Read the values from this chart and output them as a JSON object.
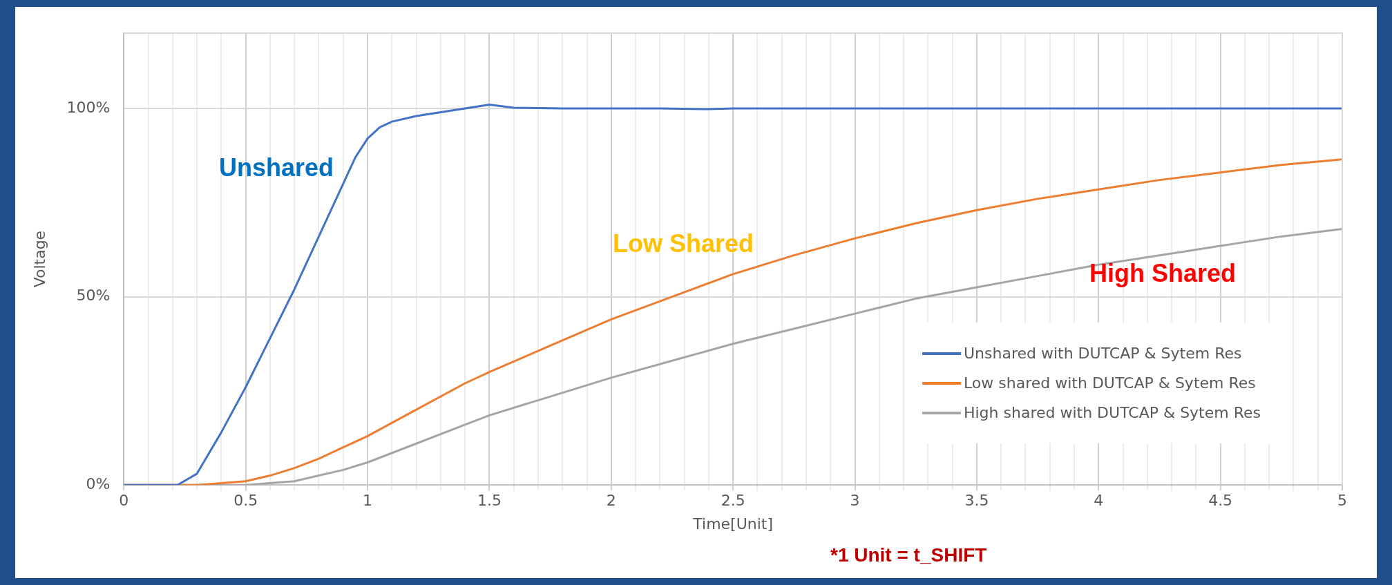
{
  "chart_data": {
    "type": "line",
    "xlabel": "Time[Unit]",
    "ylabel": "Voltage",
    "annotations": [
      "Unshared",
      "Low Shared",
      "High Shared",
      "*1 Unit = t_SHIFT"
    ],
    "xlim": [
      0,
      5
    ],
    "ylim": [
      0,
      120
    ],
    "xticks": [
      0,
      {
        "value": 0.1,
        "label": null
      },
      {
        "value": 0.2,
        "label": null
      },
      {
        "value": 0.3,
        "label": null
      },
      {
        "value": 0.4,
        "label": null
      },
      0.5,
      {
        "value": 0.6,
        "label": null
      },
      {
        "value": 0.7,
        "label": null
      },
      {
        "value": 0.8,
        "label": null
      },
      {
        "value": 0.9,
        "label": null
      },
      1,
      {
        "value": 1.1,
        "label": null
      },
      {
        "value": 1.2,
        "label": null
      },
      {
        "value": 1.3,
        "label": null
      },
      {
        "value": 1.4,
        "label": null
      },
      1.5,
      {
        "value": 1.6,
        "label": null
      },
      {
        "value": 1.7,
        "label": null
      },
      {
        "value": 1.8,
        "label": null
      },
      {
        "value": 1.9,
        "label": null
      },
      2,
      {
        "value": 2.1,
        "label": null
      },
      {
        "value": 2.2,
        "label": null
      },
      {
        "value": 2.3,
        "label": null
      },
      {
        "value": 2.4,
        "label": null
      },
      2.5,
      {
        "value": 2.6,
        "label": null
      },
      {
        "value": 2.7,
        "label": null
      },
      {
        "value": 2.8,
        "label": null
      },
      {
        "value": 2.9,
        "label": null
      },
      3,
      {
        "value": 3.1,
        "label": null
      },
      {
        "value": 3.2,
        "label": null
      },
      {
        "value": 3.3,
        "label": null
      },
      {
        "value": 3.4,
        "label": null
      },
      3.5,
      {
        "value": 3.6,
        "label": null
      },
      {
        "value": 3.7,
        "label": null
      },
      {
        "value": 3.8,
        "label": null
      },
      {
        "value": 3.9,
        "label": null
      },
      4,
      {
        "value": 4.1,
        "label": null
      },
      {
        "value": 4.2,
        "label": null
      },
      {
        "value": 4.3,
        "label": null
      },
      {
        "value": 4.4,
        "label": null
      },
      4.5,
      {
        "value": 4.6,
        "label": null
      },
      {
        "value": 4.7,
        "label": null
      },
      {
        "value": 4.8,
        "label": null
      },
      {
        "value": 4.9,
        "label": null
      },
      5
    ],
    "yticks": [
      {
        "value": 0,
        "label": "0%"
      },
      {
        "value": 50,
        "label": "50%"
      },
      {
        "value": 100,
        "label": "100%"
      }
    ],
    "grid": true,
    "legend": "bottom right",
    "marker": "none",
    "line_style": "solid",
    "series": [
      {
        "name": "Unshared with DUTCAP & Sytem Res",
        "color": "#4472c4",
        "x": [
          0,
          0.22,
          0.3,
          0.4,
          0.5,
          0.6,
          0.7,
          0.8,
          0.9,
          0.95,
          1.0,
          1.05,
          1.1,
          1.2,
          1.3,
          1.4,
          1.5,
          1.6,
          1.8,
          2.2,
          2.4,
          2.5,
          3,
          4,
          5
        ],
        "values": [
          0,
          0,
          3,
          14,
          26,
          39,
          52,
          66,
          80,
          87,
          92,
          95,
          96.5,
          98,
          99,
          100,
          101,
          100.2,
          100,
          100,
          99.8,
          100,
          100,
          100,
          100
        ]
      },
      {
        "name": "Low shared with DUTCAP & Sytem Res",
        "color": "#ed7d31",
        "x": [
          0,
          0.3,
          0.5,
          0.6,
          0.7,
          0.8,
          0.9,
          1.0,
          1.2,
          1.4,
          1.5,
          1.75,
          2.0,
          2.25,
          2.5,
          2.75,
          3.0,
          3.25,
          3.5,
          3.75,
          4.0,
          4.25,
          4.5,
          4.75,
          5
        ],
        "values": [
          0,
          0,
          1,
          2.5,
          4.5,
          7,
          10,
          13,
          20,
          27,
          30,
          37,
          44,
          50,
          56,
          61,
          65.5,
          69.5,
          73,
          76,
          78.5,
          81,
          83,
          85,
          86.5
        ]
      },
      {
        "name": "High shared with DUTCAP & Sytem Res",
        "color": "#a5a5a5",
        "x": [
          0,
          0.5,
          0.7,
          0.8,
          0.9,
          1.0,
          1.2,
          1.4,
          1.5,
          1.75,
          2.0,
          2.25,
          2.5,
          2.75,
          3.0,
          3.25,
          3.5,
          3.75,
          4.0,
          4.25,
          4.5,
          4.75,
          5
        ],
        "values": [
          0,
          0,
          1,
          2.5,
          4,
          6,
          11,
          16,
          18.5,
          23.5,
          28.5,
          33,
          37.5,
          41.5,
          45.5,
          49.5,
          52.5,
          55.5,
          58.5,
          61,
          63.5,
          66,
          68
        ]
      }
    ]
  }
}
